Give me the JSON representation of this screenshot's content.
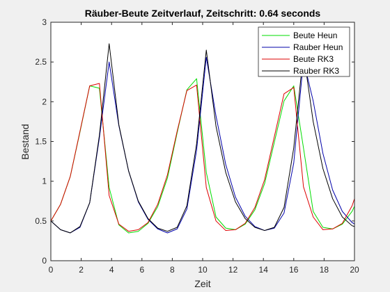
{
  "chart_data": {
    "type": "line",
    "title": "Räuber-Beute Zeitverlauf, Zeitschritt: 0.64 seconds",
    "xlabel": "Zeit",
    "ylabel": "Bestand",
    "xlim": [
      0,
      20
    ],
    "ylim": [
      0,
      3
    ],
    "xticks": [
      0,
      2,
      4,
      6,
      8,
      10,
      12,
      14,
      16,
      18,
      20
    ],
    "yticks": [
      0,
      0.5,
      1,
      1.5,
      2,
      2.5,
      3
    ],
    "ytick_labels": [
      "0",
      "0.5",
      "1",
      "1.5",
      "2",
      "2.5",
      "3"
    ],
    "grid": false,
    "legend_position": "top-right",
    "x": [
      0,
      0.64,
      1.28,
      1.92,
      2.56,
      3.2,
      3.84,
      4.48,
      5.12,
      5.76,
      6.4,
      7.04,
      7.68,
      8.32,
      8.96,
      9.6,
      10.24,
      10.88,
      11.52,
      12.16,
      12.8,
      13.44,
      14.08,
      14.72,
      15.36,
      16.0,
      16.64,
      17.28,
      17.92,
      18.56,
      19.2,
      19.84,
      20.48
    ],
    "series": [
      {
        "name": "Beute Heun",
        "color": "#00dd00",
        "values": [
          0.5,
          0.71,
          1.06,
          1.62,
          2.2,
          2.17,
          0.92,
          0.45,
          0.35,
          0.37,
          0.47,
          0.68,
          1.04,
          1.61,
          2.15,
          2.29,
          1.11,
          0.55,
          0.41,
          0.39,
          0.46,
          0.64,
          0.97,
          1.49,
          2.01,
          2.2,
          1.42,
          0.62,
          0.42,
          0.4,
          0.46,
          0.62,
          0.88
        ]
      },
      {
        "name": "Rauber Heun",
        "color": "#0000aa",
        "values": [
          0.5,
          0.39,
          0.35,
          0.42,
          0.73,
          1.55,
          2.5,
          1.7,
          1.13,
          0.74,
          0.52,
          0.4,
          0.35,
          0.4,
          0.65,
          1.39,
          2.56,
          1.82,
          1.21,
          0.8,
          0.56,
          0.43,
          0.38,
          0.41,
          0.6,
          1.23,
          2.52,
          2.01,
          1.35,
          0.89,
          0.62,
          0.48,
          0.41
        ]
      },
      {
        "name": "Beute RK3",
        "color": "#dd0000",
        "values": [
          0.5,
          0.71,
          1.06,
          1.63,
          2.2,
          2.23,
          0.82,
          0.46,
          0.37,
          0.39,
          0.48,
          0.71,
          1.08,
          1.63,
          2.14,
          2.21,
          0.92,
          0.5,
          0.38,
          0.39,
          0.47,
          0.67,
          1.02,
          1.56,
          2.1,
          2.18,
          0.93,
          0.55,
          0.39,
          0.4,
          0.47,
          0.69,
          1.05
        ]
      },
      {
        "name": "Rauber RK3",
        "color": "#000000",
        "values": [
          0.5,
          0.39,
          0.35,
          0.43,
          0.73,
          1.58,
          2.73,
          1.71,
          1.13,
          0.75,
          0.53,
          0.41,
          0.37,
          0.42,
          0.69,
          1.47,
          2.65,
          1.69,
          1.11,
          0.74,
          0.53,
          0.42,
          0.38,
          0.42,
          0.67,
          1.42,
          2.62,
          1.75,
          1.16,
          0.78,
          0.55,
          0.44,
          0.4
        ]
      }
    ]
  }
}
